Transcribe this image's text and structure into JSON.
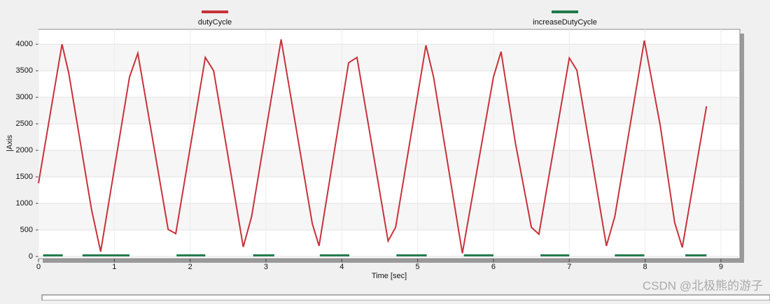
{
  "chart_data": {
    "type": "line",
    "y_label": "|Axis",
    "x_label": "Time [sec]",
    "xlim": [
      0,
      9.25
    ],
    "xticks": [
      0,
      1,
      2,
      3,
      4,
      5,
      6,
      7,
      8,
      9
    ],
    "ylim": [
      -40,
      4280
    ],
    "yticks": [
      0,
      500,
      1000,
      1500,
      2000,
      2500,
      3000,
      3500,
      4000
    ],
    "grid": true,
    "legend": "top",
    "watermark": "CSDN @北极熊的游子",
    "series": [
      {
        "name": "dutyCycle",
        "color": "#c8323a",
        "x": [
          0,
          0.31,
          0.4,
          0.7,
          0.82,
          1.2,
          1.31,
          1.71,
          1.81,
          2.2,
          2.31,
          2.7,
          2.81,
          3.2,
          3.61,
          3.7,
          4.09,
          4.2,
          4.61,
          4.71,
          5.11,
          5.21,
          5.59,
          6.0,
          6.1,
          6.29,
          6.5,
          6.6,
          7.0,
          7.1,
          7.49,
          7.6,
          7.99,
          8.2,
          8.39,
          8.49,
          8.81
        ],
        "values": [
          1380,
          4000,
          3450,
          880,
          90,
          3380,
          3830,
          510,
          430,
          3750,
          3500,
          180,
          750,
          4090,
          620,
          200,
          3650,
          3750,
          290,
          550,
          3980,
          3380,
          60,
          3380,
          3860,
          2130,
          550,
          420,
          3740,
          3510,
          200,
          750,
          4070,
          2460,
          640,
          170,
          2830
        ]
      },
      {
        "name": "increaseDutyCycle",
        "color": "#1e7a4a",
        "x": [
          0.06,
          0.32,
          0.45,
          0.58,
          1.2,
          1.5,
          1.82,
          2.2,
          2.5,
          2.83,
          3.11,
          3.4,
          3.71,
          4.1,
          4.4,
          4.72,
          5.12,
          5.4,
          5.61,
          6.0,
          6.3,
          6.62,
          7.0,
          7.3,
          7.6,
          7.99,
          8.3,
          8.53,
          8.81
        ],
        "values": [
          20,
          20,
          null,
          20,
          20,
          null,
          20,
          20,
          null,
          20,
          20,
          null,
          20,
          20,
          null,
          20,
          20,
          null,
          20,
          20,
          null,
          20,
          20,
          null,
          20,
          20,
          null,
          20,
          20
        ]
      }
    ]
  }
}
